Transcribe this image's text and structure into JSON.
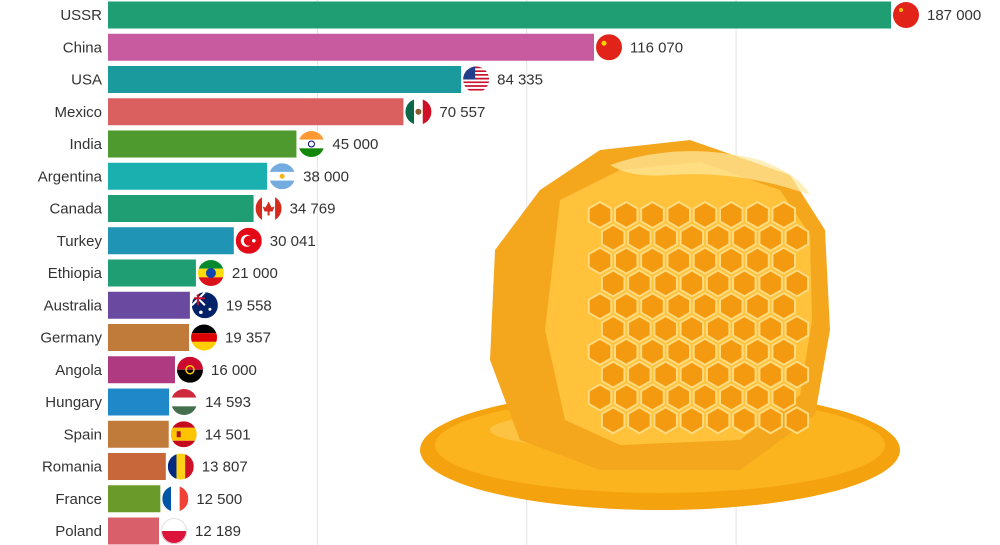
{
  "chart_data": {
    "type": "bar",
    "orientation": "horizontal",
    "title": "",
    "xlabel": "",
    "ylabel": "",
    "xlim": [
      0,
      187000
    ],
    "grid": true,
    "legend": "none",
    "categories": [
      "USSR",
      "China",
      "USA",
      "Mexico",
      "India",
      "Argentina",
      "Canada",
      "Turkey",
      "Ethiopia",
      "Australia",
      "Germany",
      "Angola",
      "Hungary",
      "Spain",
      "Romania",
      "France",
      "Poland"
    ],
    "values": [
      187000,
      116070,
      84335,
      70557,
      45000,
      38000,
      34769,
      30041,
      21000,
      19558,
      19357,
      16000,
      14593,
      14501,
      13807,
      12500,
      12189
    ],
    "value_labels": [
      "187 000",
      "116 070",
      "84 335",
      "70 557",
      "45 000",
      "38 000",
      "34 769",
      "30 041",
      "21 000",
      "19 558",
      "19 357",
      "16 000",
      "14 593",
      "14 501",
      "13 807",
      "12 500",
      "12 189"
    ],
    "colors": [
      "#1f9e73",
      "#c85aa0",
      "#1a9a9c",
      "#d9605f",
      "#4e9a2e",
      "#1ab0b0",
      "#1f9e73",
      "#1f94b4",
      "#1f9e73",
      "#6a4aa0",
      "#c07a3a",
      "#b03a82",
      "#1f88c8",
      "#c07a3a",
      "#c8683a",
      "#6a9a2a",
      "#d9606a"
    ],
    "flags": [
      "ussr-flag",
      "china-flag",
      "usa-flag",
      "mexico-flag",
      "india-flag",
      "argentina-flag",
      "canada-flag",
      "turkey-flag",
      "ethiopia-flag",
      "australia-flag",
      "germany-flag",
      "angola-flag",
      "hungary-flag",
      "spain-flag",
      "romania-flag",
      "france-flag",
      "poland-flag"
    ]
  },
  "decoration": {
    "image": "honeycomb-with-honey"
  }
}
